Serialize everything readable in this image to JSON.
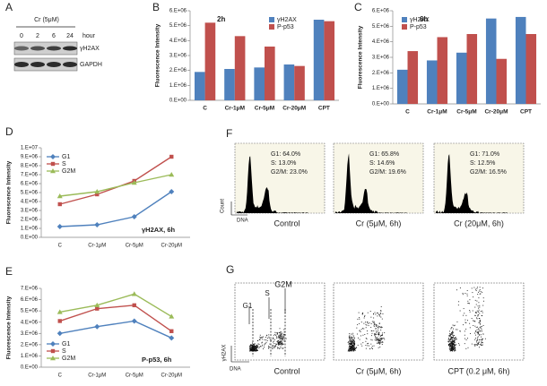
{
  "blot": {
    "panel": "A",
    "treatment": "Cr (5μM)",
    "unit": "hour",
    "timepoints": [
      0,
      2,
      6,
      24
    ],
    "rows": [
      "γH2AX",
      "GAPDH"
    ]
  },
  "chart_data": [
    {
      "type": "bar",
      "panel": "B",
      "title": "2h",
      "ylabel": "Fluorescence Intensity",
      "legend": "upper right",
      "categories": [
        "C",
        "Cr-1μM",
        "Cr-5μM",
        "Cr-20μM",
        "CPT"
      ],
      "series": [
        {
          "name": "γH2AX",
          "color": "#4f81bd",
          "values": [
            1900000,
            2100000,
            2200000,
            2400000,
            5400000
          ]
        },
        {
          "name": "P-p53",
          "color": "#c0504d",
          "values": [
            5200000,
            4300000,
            3600000,
            2300000,
            5300000
          ]
        }
      ],
      "ylim": [
        0,
        6000000
      ],
      "yticks": [
        {
          "value": 0,
          "label": "0.E+00"
        },
        {
          "value": 1000000,
          "label": "1.E+06"
        },
        {
          "value": 2000000,
          "label": "2.E+06"
        },
        {
          "value": 3000000,
          "label": "3.E+06"
        },
        {
          "value": 4000000,
          "label": "4.E+06"
        },
        {
          "value": 5000000,
          "label": "5.E+06"
        },
        {
          "value": 6000000,
          "label": "6.E+06"
        }
      ]
    },
    {
      "type": "bar",
      "panel": "C",
      "title": "6h",
      "ylabel": "Fluorescence Intensity",
      "legend": "upper left",
      "categories": [
        "C",
        "Cr-1μM",
        "Cr-5μM",
        "Cr-20μM",
        "CPT"
      ],
      "series": [
        {
          "name": "γH2AX",
          "color": "#4f81bd",
          "values": [
            2200000,
            2800000,
            3300000,
            5500000,
            5600000
          ]
        },
        {
          "name": "P-p53",
          "color": "#c0504d",
          "values": [
            3400000,
            4300000,
            4500000,
            2900000,
            4500000
          ]
        }
      ],
      "ylim": [
        0,
        6000000
      ],
      "yticks": [
        {
          "value": 0,
          "label": "0.E+00"
        },
        {
          "value": 1000000,
          "label": "1.E+06"
        },
        {
          "value": 2000000,
          "label": "2.E+06"
        },
        {
          "value": 3000000,
          "label": "3.E+06"
        },
        {
          "value": 4000000,
          "label": "4.E+06"
        },
        {
          "value": 5000000,
          "label": "5.E+06"
        },
        {
          "value": 6000000,
          "label": "6.E+06"
        }
      ]
    },
    {
      "type": "line",
      "panel": "D",
      "annotation": "γH2AX, 6h",
      "ylabel": "Fluorescence Intensity",
      "legend": "upper left",
      "categories": [
        "C",
        "Cr-1μM",
        "Cr-5μM",
        "Cr-20μM"
      ],
      "series": [
        {
          "name": "G1",
          "color": "#4f81bd",
          "marker": "diamond",
          "values": [
            1200000,
            1400000,
            2300000,
            5100000
          ]
        },
        {
          "name": "S",
          "color": "#c0504d",
          "marker": "square",
          "values": [
            3700000,
            4800000,
            6300000,
            9000000
          ]
        },
        {
          "name": "G2M",
          "color": "#9bbb59",
          "marker": "triangle",
          "values": [
            4600000,
            5100000,
            6100000,
            7000000
          ]
        }
      ],
      "ylim": [
        0,
        10000000
      ],
      "yticks": [
        {
          "value": 0,
          "label": "0.E+00"
        },
        {
          "value": 1000000,
          "label": "1.E+06"
        },
        {
          "value": 2000000,
          "label": "2.E+06"
        },
        {
          "value": 3000000,
          "label": "3.E+06"
        },
        {
          "value": 4000000,
          "label": "4.E+06"
        },
        {
          "value": 5000000,
          "label": "5.E+06"
        },
        {
          "value": 6000000,
          "label": "6.E+06"
        },
        {
          "value": 7000000,
          "label": "7.E+06"
        },
        {
          "value": 8000000,
          "label": "8.E+06"
        },
        {
          "value": 9000000,
          "label": "9.E+06"
        },
        {
          "value": 10000000,
          "label": "1.E+07"
        }
      ]
    },
    {
      "type": "line",
      "panel": "E",
      "annotation": "P-p53, 6h",
      "ylabel": "Fluorescence Intensity",
      "legend": "lower left",
      "categories": [
        "C",
        "Cr-1μM",
        "Cr-5μM",
        "Cr-20μM"
      ],
      "series": [
        {
          "name": "G1",
          "color": "#4f81bd",
          "marker": "diamond",
          "values": [
            3000000,
            3600000,
            4100000,
            2600000
          ]
        },
        {
          "name": "S",
          "color": "#c0504d",
          "marker": "square",
          "values": [
            4100000,
            5200000,
            5500000,
            3200000
          ]
        },
        {
          "name": "G2M",
          "color": "#9bbb59",
          "marker": "triangle",
          "values": [
            4900000,
            5500000,
            6500000,
            4500000
          ]
        }
      ],
      "ylim": [
        0,
        7000000
      ],
      "yticks": [
        {
          "value": 0,
          "label": "0.E+00"
        },
        {
          "value": 1000000,
          "label": "1.E+06"
        },
        {
          "value": 2000000,
          "label": "2.E+06"
        },
        {
          "value": 3000000,
          "label": "3.E+06"
        },
        {
          "value": 4000000,
          "label": "4.E+06"
        },
        {
          "value": 5000000,
          "label": "5.E+06"
        },
        {
          "value": 6000000,
          "label": "6.E+06"
        },
        {
          "value": 7000000,
          "label": "7.E+06"
        }
      ]
    }
  ],
  "cell_cycle": {
    "panel": "F",
    "y_label": "Count",
    "x_label": "DNA",
    "samples": [
      {
        "name": "Control",
        "stats": [
          "G1: 64.0%",
          "S: 13.0%",
          "G2/M: 23.0%"
        ]
      },
      {
        "name": "Cr (5μM, 6h)",
        "stats": [
          "G1: 65.8%",
          "S: 14.6%",
          "G2/M: 19.6%"
        ]
      },
      {
        "name": "Cr (20μM, 6h)",
        "stats": [
          "G1: 71.0%",
          "S: 12.5%",
          "G2/M: 16.5%"
        ]
      }
    ]
  },
  "dna_scatter": {
    "panel": "G",
    "y_label": "γH2AX",
    "x_label": "DNA",
    "gates": [
      "G1",
      "S",
      "G2M"
    ],
    "samples": [
      "Control",
      "Cr (5μM, 6h)",
      "CPT (0.2 μM, 6h)"
    ]
  }
}
